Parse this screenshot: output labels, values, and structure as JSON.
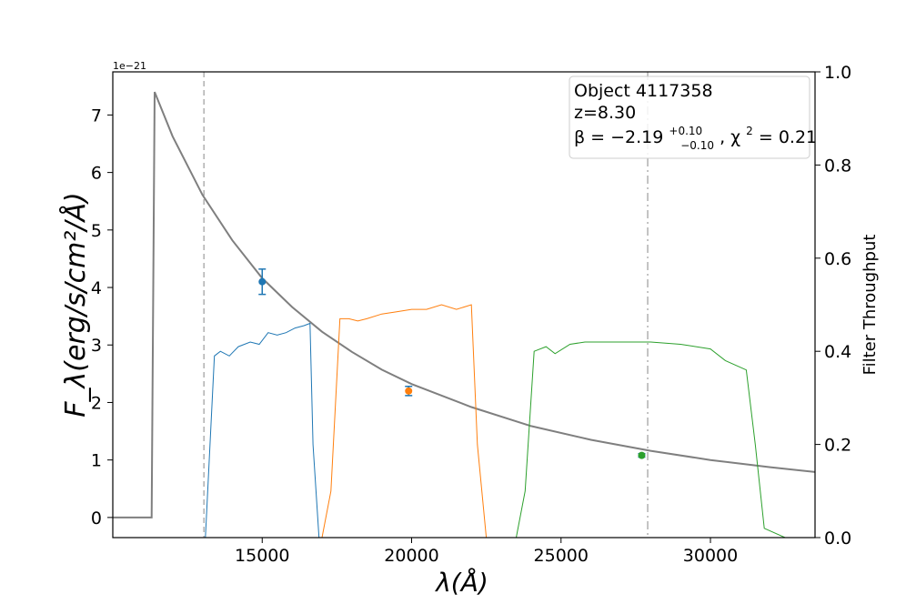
{
  "chart_data": {
    "type": "line",
    "title": "",
    "xlabel": "λ(Å)",
    "ylabel": "F_λ(erg/s/cm²/Å)",
    "y2label": "Filter Throughput",
    "y_offset_label": "1e−21",
    "xlim": [
      10000,
      33500
    ],
    "ylim": [
      -0.35,
      7.75
    ],
    "y2lim": [
      0.0,
      1.0
    ],
    "x_ticks": [
      15000,
      20000,
      25000,
      30000
    ],
    "y_ticks": [
      0,
      1,
      2,
      3,
      4,
      5,
      6,
      7
    ],
    "y2_ticks": [
      0.0,
      0.2,
      0.4,
      0.6,
      0.8,
      1.0
    ],
    "y2_tick_labels": [
      "0.0",
      "0.2",
      "0.4",
      "0.6",
      "0.8",
      "1.0"
    ],
    "grid": false,
    "legend_placement": "top-right",
    "annotation": {
      "object": "Object 4117358",
      "redshift": "z=8.30",
      "beta_prefix": "β = −2.19",
      "beta_sup": "+0.10",
      "beta_sub": "−0.10",
      "chi_label": ", χ",
      "chi_sup": "2",
      "chi_value": " = 0.21"
    },
    "vlines": [
      {
        "x": 13050,
        "style": "dashed",
        "color": "#b0b0b0"
      },
      {
        "x": 27900,
        "style": "dashdot",
        "color": "#b0b0b0"
      }
    ],
    "series": [
      {
        "kind": "model",
        "color": "#7f7f7f",
        "x": [
          10000,
          11300,
          11300,
          11400,
          12000,
          13000,
          14000,
          15000,
          16000,
          17000,
          18000,
          19000,
          20000,
          22000,
          24000,
          26000,
          28000,
          30000,
          32000,
          33500
        ],
        "y": [
          0,
          0,
          0,
          7.4,
          6.63,
          5.61,
          4.82,
          4.16,
          3.66,
          3.23,
          2.88,
          2.57,
          2.32,
          1.92,
          1.59,
          1.35,
          1.16,
          1.0,
          0.875,
          0.79
        ]
      },
      {
        "kind": "filter",
        "color": "#1f77b4",
        "x": [
          13100,
          13400,
          13600,
          13900,
          14200,
          14600,
          14900,
          15200,
          15500,
          15800,
          16100,
          16400,
          16600,
          16700,
          16900
        ],
        "y": [
          0.0,
          0.39,
          0.4,
          0.39,
          0.41,
          0.42,
          0.415,
          0.44,
          0.435,
          0.44,
          0.45,
          0.455,
          0.46,
          0.2,
          0.0
        ]
      },
      {
        "kind": "filter",
        "color": "#ff7f0e",
        "x": [
          17000,
          17300,
          17600,
          17900,
          18200,
          18500,
          19000,
          19500,
          20000,
          20500,
          21000,
          21500,
          22000,
          22200,
          22500
        ],
        "y": [
          0.0,
          0.1,
          0.47,
          0.47,
          0.465,
          0.47,
          0.48,
          0.485,
          0.49,
          0.49,
          0.5,
          0.49,
          0.5,
          0.2,
          0.0
        ]
      },
      {
        "kind": "filter",
        "color": "#2ca02c",
        "x": [
          23500,
          23800,
          24100,
          24500,
          24800,
          25300,
          25800,
          26500,
          27500,
          28000,
          29000,
          30000,
          30500,
          31200,
          31500,
          31800,
          32500
        ],
        "y": [
          0.0,
          0.1,
          0.4,
          0.41,
          0.395,
          0.415,
          0.42,
          0.42,
          0.42,
          0.42,
          0.415,
          0.405,
          0.38,
          0.36,
          0.2,
          0.02,
          0.0
        ]
      },
      {
        "kind": "photometry",
        "points": [
          {
            "x": 15000,
            "y": 4.1,
            "err": 0.22,
            "color": "#1f77b4",
            "ecolor": "#1f77b4"
          },
          {
            "x": 19900,
            "y": 2.2,
            "err": 0.08,
            "color": "#ff7f0e",
            "ecolor": "#1f77b4"
          },
          {
            "x": 27700,
            "y": 1.08,
            "err": 0.03,
            "color": "#2ca02c",
            "ecolor": "#1f77b4"
          }
        ]
      }
    ]
  }
}
